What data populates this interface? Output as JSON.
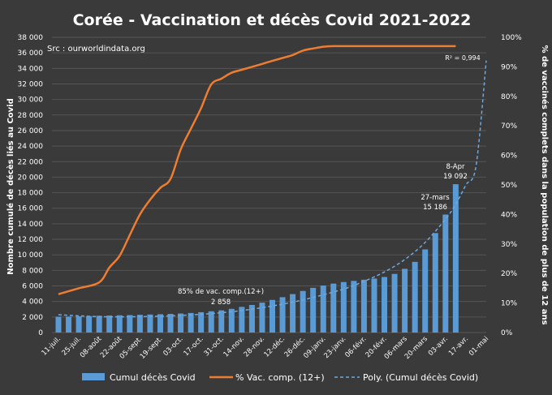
{
  "chart_data": {
    "type": "bar",
    "title": "Corée  - Vaccination et décès Covid 2021-2022",
    "source": "Src : ourworldindata.org",
    "ylabel_left": "Nombre cumulé de décès liés au Covid",
    "ylabel_right": "% de vaccinés complets dans  la population de plus de 12 ans",
    "y_left_ticks": [
      "0",
      "2 000",
      "4 000",
      "6 000",
      "8 000",
      "10 000",
      "12 000",
      "14 000",
      "16 000",
      "18 000",
      "20 000",
      "22 000",
      "24 000",
      "26 000",
      "28 000",
      "30 000",
      "32 000",
      "34 000",
      "36 000",
      "38 000"
    ],
    "y_left_range": [
      0,
      38000
    ],
    "y_right_ticks": [
      "0%",
      "10%",
      "20%",
      "30%",
      "40%",
      "50%",
      "60%",
      "70%",
      "80%",
      "90%",
      "100%"
    ],
    "y_right_range": [
      0,
      100
    ],
    "x_tick_labels": [
      "11-juil.",
      "25-juil.",
      "08-août",
      "22-août",
      "05-sept.",
      "19-sept.",
      "03-oct.",
      "17-oct.",
      "31-oct.",
      "14-nov.",
      "28-nov.",
      "12-déc.",
      "26-déc.",
      "09-janv.",
      "23-janv.",
      "06-févr.",
      "20-févr.",
      "06-mars",
      "20-mars",
      "03-avr.",
      "17-avr.",
      "01-mai"
    ],
    "x_range_weeks": [
      0,
      42
    ],
    "bars": {
      "name": "Cumul décès Covid",
      "x_weeks": [
        0,
        1,
        2,
        3,
        4,
        5,
        6,
        7,
        8,
        9,
        10,
        11,
        12,
        13,
        14,
        15,
        16,
        17,
        18,
        19,
        20,
        21,
        22,
        23,
        24,
        25,
        26,
        27,
        28,
        29,
        30,
        31,
        32,
        33,
        34,
        35,
        36,
        37,
        38,
        39
      ],
      "values": [
        2030,
        2055,
        2090,
        2120,
        2160,
        2190,
        2220,
        2250,
        2285,
        2320,
        2360,
        2400,
        2450,
        2520,
        2620,
        2740,
        2858,
        3050,
        3300,
        3550,
        3850,
        4200,
        4550,
        4950,
        5350,
        5750,
        6050,
        6300,
        6500,
        6650,
        6800,
        6950,
        7150,
        7550,
        8200,
        9100,
        10700,
        12800,
        15186,
        19092
      ]
    },
    "vaccination": {
      "name": "% Vac. comp. (12+)",
      "points": [
        [
          0,
          13
        ],
        [
          2,
          15
        ],
        [
          4,
          17
        ],
        [
          5,
          22
        ],
        [
          6,
          26
        ],
        [
          7,
          33
        ],
        [
          8,
          40
        ],
        [
          9,
          45
        ],
        [
          10,
          49
        ],
        [
          11,
          52
        ],
        [
          12,
          62
        ],
        [
          13,
          69
        ],
        [
          14,
          76
        ],
        [
          15,
          84
        ],
        [
          16,
          86
        ],
        [
          17,
          88
        ],
        [
          18,
          89
        ],
        [
          19,
          90
        ],
        [
          20,
          91
        ],
        [
          21,
          92
        ],
        [
          22,
          93
        ],
        [
          23,
          94
        ],
        [
          24,
          95.5
        ],
        [
          25,
          96.2
        ],
        [
          26,
          96.8
        ],
        [
          27,
          97
        ],
        [
          28,
          97
        ],
        [
          29,
          97
        ],
        [
          30,
          97
        ],
        [
          31,
          97
        ],
        [
          32,
          97
        ],
        [
          33,
          97
        ],
        [
          34,
          97
        ],
        [
          35,
          97
        ],
        [
          36,
          97
        ],
        [
          37,
          97
        ],
        [
          38,
          97
        ],
        [
          39,
          97
        ]
      ]
    },
    "trend": {
      "name": "Poly. (Cumul décès Covid)",
      "r_squared": "R² = 0,994",
      "points": [
        [
          0,
          2300
        ],
        [
          4,
          2050
        ],
        [
          8,
          2050
        ],
        [
          12,
          2200
        ],
        [
          16,
          2550
        ],
        [
          20,
          3200
        ],
        [
          24,
          4200
        ],
        [
          28,
          5600
        ],
        [
          30,
          6600
        ],
        [
          32,
          7800
        ],
        [
          34,
          9400
        ],
        [
          36,
          11600
        ],
        [
          38,
          14600
        ],
        [
          39,
          16500
        ],
        [
          40,
          19000
        ],
        [
          41,
          21500
        ],
        [
          42,
          35000
        ]
      ]
    },
    "annotations": [
      {
        "label": "85% de vac. comp.(12+)",
        "value": "2 858"
      },
      {
        "label": "27-mars",
        "value": "15 186"
      },
      {
        "label": "8-Apr",
        "value": "19 092"
      }
    ],
    "legend": {
      "position": "bottom",
      "items": [
        "Cumul décès Covid",
        "% Vac. comp. (12+)",
        "Poly. (Cumul décès Covid)"
      ]
    }
  },
  "colors": {
    "background": "#3a3a3a",
    "grid": "#555555",
    "text": "#ffffff",
    "bar": "#5b9bd5",
    "vaccination_line": "#ed7d31",
    "trend_line": "#6fa8dc"
  }
}
